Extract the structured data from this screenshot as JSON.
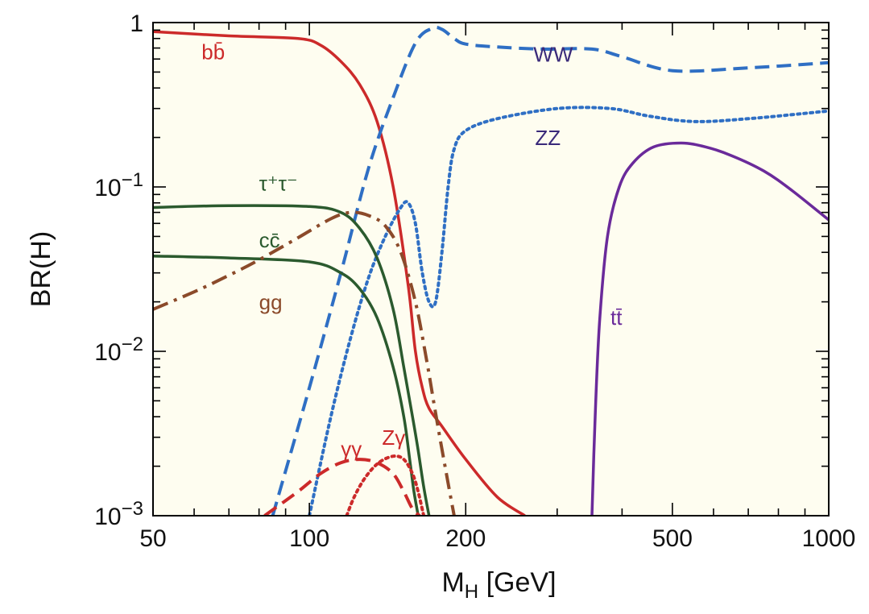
{
  "chart_data": {
    "type": "line",
    "xlabel_main": "M",
    "xlabel_sub": "H",
    "xlabel_rest": " [GeV]",
    "ylabel": "BR(H)",
    "xscale": "log",
    "yscale": "log",
    "xlim": [
      50,
      1000
    ],
    "ylim": [
      0.001,
      1
    ],
    "grid": false,
    "plot_background": "#fefdf0",
    "x_ticks": [
      {
        "value": 50,
        "label": "50"
      },
      {
        "value": 100,
        "label": "100"
      },
      {
        "value": 200,
        "label": "200"
      },
      {
        "value": 500,
        "label": "500"
      },
      {
        "value": 1000,
        "label": "1000"
      }
    ],
    "y_ticks": [
      {
        "value": 1,
        "base": "1",
        "exp": ""
      },
      {
        "value": 0.1,
        "base": "10",
        "exp": "−1"
      },
      {
        "value": 0.01,
        "base": "10",
        "exp": "−2"
      },
      {
        "value": 0.001,
        "base": "10",
        "exp": "−3"
      }
    ],
    "series": [
      {
        "name": "bb̄",
        "color": "#cc2a2a",
        "dash": "solid",
        "x": [
          50,
          70,
          95,
          105,
          115,
          125,
          135,
          145,
          155,
          160,
          165,
          170,
          180,
          200,
          230,
          260
        ],
        "y": [
          0.88,
          0.83,
          0.8,
          0.73,
          0.58,
          0.42,
          0.25,
          0.1,
          0.025,
          0.01,
          0.006,
          0.0045,
          0.0035,
          0.0022,
          0.0013,
          0.001
        ]
      },
      {
        "name": "WW",
        "color": "#2f6fc4",
        "dash": "dashed",
        "x": [
          85,
          100,
          115,
          130,
          145,
          160,
          172,
          180,
          190,
          200,
          230,
          280,
          350,
          400,
          500,
          700,
          1000
        ],
        "y": [
          0.001,
          0.006,
          0.03,
          0.13,
          0.35,
          0.75,
          0.92,
          0.91,
          0.8,
          0.74,
          0.71,
          0.69,
          0.69,
          0.62,
          0.51,
          0.53,
          0.57
        ]
      },
      {
        "name": "ZZ",
        "color": "#2f6fc4",
        "dash": "dotted",
        "x": [
          100,
          110,
          120,
          130,
          140,
          150,
          155,
          160,
          165,
          170,
          175,
          180,
          185,
          190,
          200,
          230,
          300,
          380,
          450,
          550,
          700,
          1000
        ],
        "y": [
          0.001,
          0.004,
          0.012,
          0.028,
          0.05,
          0.075,
          0.08,
          0.06,
          0.03,
          0.02,
          0.02,
          0.04,
          0.1,
          0.17,
          0.22,
          0.26,
          0.3,
          0.3,
          0.27,
          0.25,
          0.26,
          0.29
        ]
      },
      {
        "name": "tt̄",
        "color": "#6a2a9a",
        "dash": "solid",
        "x": [
          350,
          355,
          362,
          375,
          395,
          420,
          460,
          520,
          580,
          650,
          750,
          850,
          1000
        ],
        "y": [
          0.001,
          0.004,
          0.015,
          0.05,
          0.1,
          0.14,
          0.175,
          0.185,
          0.175,
          0.155,
          0.125,
          0.095,
          0.063
        ]
      },
      {
        "name": "τ⁺τ⁻",
        "color": "#2b5a2e",
        "dash": "solid",
        "x": [
          50,
          70,
          100,
          115,
          125,
          135,
          145,
          152,
          158,
          162,
          166,
          170
        ],
        "y": [
          0.075,
          0.077,
          0.076,
          0.07,
          0.056,
          0.037,
          0.018,
          0.008,
          0.004,
          0.0025,
          0.0015,
          0.001
        ]
      },
      {
        "name": "cc̄",
        "color": "#2b5a2e",
        "dash": "solid",
        "x": [
          50,
          70,
          100,
          115,
          125,
          135,
          145,
          152,
          156,
          159,
          162
        ],
        "y": [
          0.038,
          0.037,
          0.035,
          0.03,
          0.024,
          0.016,
          0.008,
          0.004,
          0.0022,
          0.0014,
          0.001
        ]
      },
      {
        "name": "gg",
        "color": "#8b4a2a",
        "dash": "dashdot",
        "x": [
          50,
          60,
          70,
          80,
          95,
          110,
          120,
          130,
          140,
          150,
          160,
          168,
          175,
          183,
          190
        ],
        "y": [
          0.018,
          0.023,
          0.029,
          0.036,
          0.049,
          0.064,
          0.07,
          0.067,
          0.058,
          0.04,
          0.02,
          0.009,
          0.0042,
          0.0019,
          0.001
        ]
      },
      {
        "name": "γγ",
        "color": "#cc2a2a",
        "dash": "dashed",
        "x": [
          82,
          95,
          105,
          115,
          125,
          135,
          145,
          152,
          158,
          163
        ],
        "y": [
          0.001,
          0.0014,
          0.0018,
          0.0021,
          0.0022,
          0.0021,
          0.0018,
          0.0014,
          0.0011,
          0.001
        ]
      },
      {
        "name": "Zγ",
        "color": "#cc2a2a",
        "dash": "dotted",
        "x": [
          118,
          122,
          128,
          136,
          145,
          152,
          158,
          162,
          166
        ],
        "y": [
          0.001,
          0.0013,
          0.0017,
          0.0021,
          0.0023,
          0.0022,
          0.0018,
          0.0014,
          0.001
        ]
      }
    ],
    "labels": [
      {
        "text": "bb̄",
        "x": 62,
        "y": 0.6,
        "color": "#cc2a2a"
      },
      {
        "text": "WW",
        "x": 270,
        "y": 0.58,
        "color": "#3a2a7a"
      },
      {
        "text": "ZZ",
        "x": 272,
        "y": 0.18,
        "color": "#3a2a7a"
      },
      {
        "text": "τ⁺τ⁻",
        "x": 80,
        "y": 0.095,
        "color": "#2b5a2e"
      },
      {
        "text": "cc̄",
        "x": 80,
        "y": 0.043,
        "color": "#2b5a2e"
      },
      {
        "text": "gg",
        "x": 80,
        "y": 0.018,
        "color": "#8b4a2a"
      },
      {
        "text": "tt̄",
        "x": 380,
        "y": 0.0145,
        "color": "#6a2a9a"
      },
      {
        "text": "γγ",
        "x": 115,
        "y": 0.0023,
        "color": "#cc2a2a"
      },
      {
        "text": "Zγ",
        "x": 138,
        "y": 0.0027,
        "color": "#cc2a2a"
      }
    ]
  }
}
